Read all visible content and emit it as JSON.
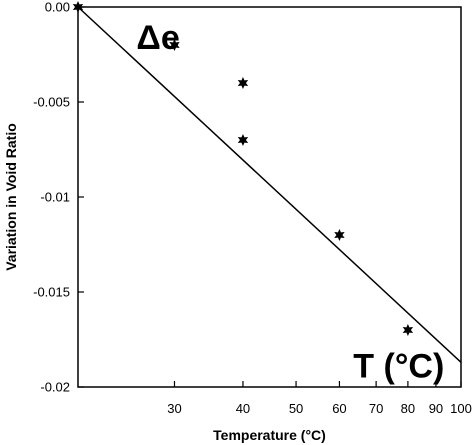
{
  "chart_data": {
    "type": "scatter",
    "x_scale": "log",
    "x_tick_values": [
      30,
      40,
      50,
      60,
      70,
      80,
      90,
      100
    ],
    "x_tick_labels": [
      "30",
      "40",
      "50",
      "60",
      "70",
      "80",
      "90",
      "100"
    ],
    "xlim": [
      20,
      100
    ],
    "y_tick_values": [
      0,
      -0.005,
      -0.01,
      -0.015,
      -0.02
    ],
    "y_tick_labels": [
      "0.00",
      "-0.005",
      "-0.01",
      "-0.015",
      "-0.02"
    ],
    "ylim": [
      -0.02,
      0
    ],
    "xlabel": "Temperature (°C)",
    "ylabel": "Variation in Void Ratio",
    "points": [
      {
        "x": 20,
        "y": 0
      },
      {
        "x": 30,
        "y": -0.002
      },
      {
        "x": 40,
        "y": -0.004
      },
      {
        "x": 40,
        "y": -0.007
      },
      {
        "x": 60,
        "y": -0.012
      },
      {
        "x": 80,
        "y": -0.017
      }
    ],
    "fit_line": {
      "x": [
        20,
        100
      ],
      "y": [
        0,
        -0.0187
      ]
    },
    "annotations": [
      {
        "text": "Δe",
        "x": 28,
        "y": -0.0022
      },
      {
        "text": "T (°C)",
        "x": 77,
        "y": -0.0195
      }
    ],
    "grid": false,
    "legend": "none"
  }
}
